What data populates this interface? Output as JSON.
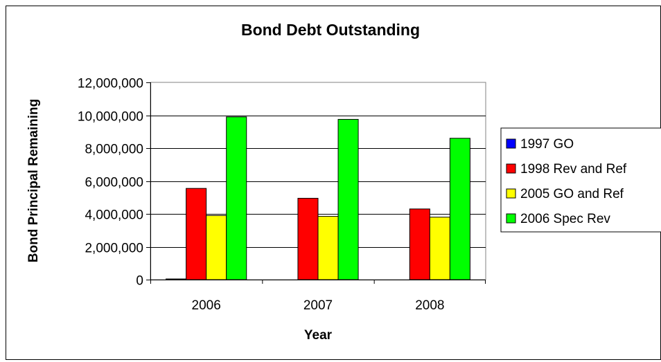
{
  "chart_data": {
    "type": "bar",
    "title": "Bond Debt Outstanding",
    "xlabel": "Year",
    "ylabel": "Bond Principal Remaining",
    "categories": [
      "2006",
      "2007",
      "2008"
    ],
    "ylim": [
      0,
      12000000
    ],
    "yticks": [
      0,
      2000000,
      4000000,
      6000000,
      8000000,
      10000000,
      12000000
    ],
    "ytick_labels": [
      "0",
      "2,000,000",
      "4,000,000",
      "6,000,000",
      "8,000,000",
      "10,000,000",
      "12,000,000"
    ],
    "grid": true,
    "legend_position": "right",
    "series": [
      {
        "name": "1997 GO",
        "color": "#0000ff",
        "values": [
          25000,
          0,
          0
        ]
      },
      {
        "name": "1998 Rev and Ref",
        "color": "#ff0000",
        "values": [
          5550000,
          4950000,
          4300000
        ]
      },
      {
        "name": "2005 GO and Ref",
        "color": "#ffff00",
        "values": [
          3900000,
          3850000,
          3800000
        ]
      },
      {
        "name": "2006 Spec Rev",
        "color": "#00ff00",
        "values": [
          9900000,
          9750000,
          8600000
        ]
      }
    ]
  }
}
